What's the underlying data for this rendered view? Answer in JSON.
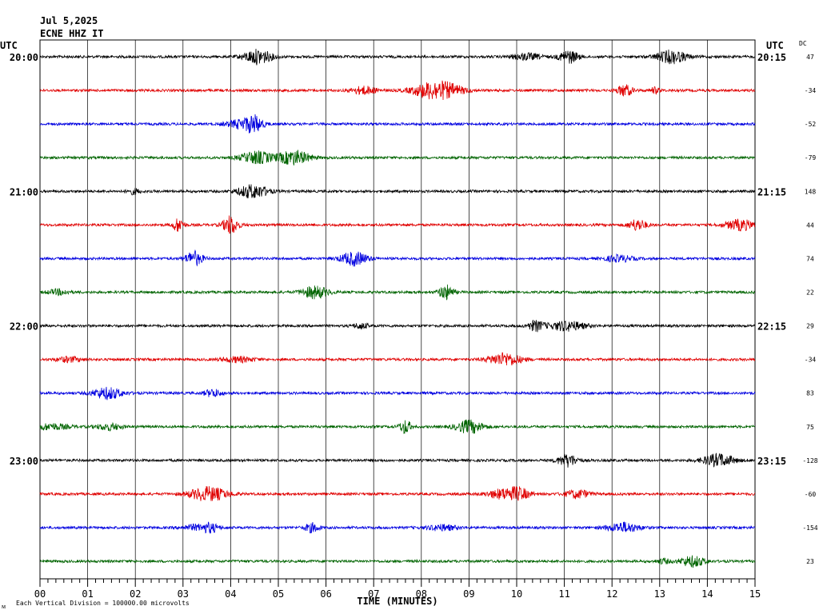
{
  "header": {
    "date": "Jul 5,2025",
    "station": "ECNE HHZ IT"
  },
  "footer": {
    "scale_note": "Each Vertical Division = 100000.00 microvolts",
    "corner_mark": "ᴍ"
  },
  "chart_data": {
    "type": "line",
    "title": "",
    "xlabel": "TIME (MINUTES)",
    "x_ticks": [
      "00",
      "01",
      "02",
      "03",
      "04",
      "05",
      "06",
      "07",
      "08",
      "09",
      "10",
      "11",
      "12",
      "13",
      "14",
      "15"
    ],
    "xlim": [
      0,
      15
    ],
    "left_axis_label": "UTC",
    "right_axis_label": "UTC",
    "dc_label": "DC",
    "grid": true,
    "colors": [
      "#000000",
      "#e00000",
      "#0000e0",
      "#006400"
    ],
    "left_hour_labels": [
      "20:00",
      "21:00",
      "22:00",
      "23:00"
    ],
    "right_hour_labels": [
      "20:15",
      "21:15",
      "22:15",
      "23:15"
    ],
    "dc_offsets": [
      47,
      -34,
      -52,
      -79,
      148,
      44,
      74,
      22,
      29,
      -34,
      83,
      75,
      -128,
      -60,
      -154,
      23
    ]
  }
}
